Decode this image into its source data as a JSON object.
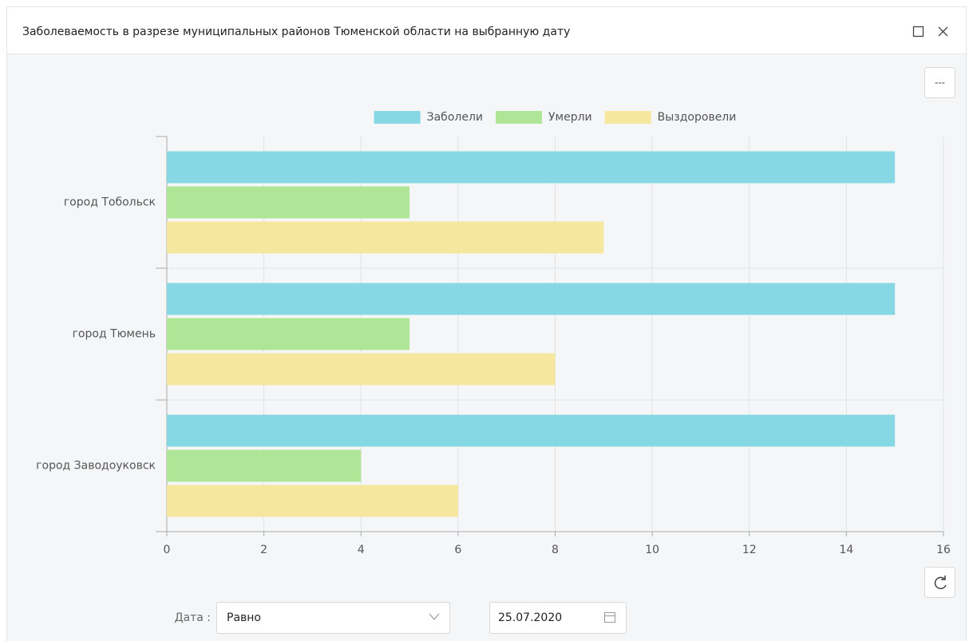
{
  "window": {
    "title": "Заболеваемость в разрезе муниципальных районов Тюменской области на выбранную дату",
    "menu_button": "---"
  },
  "chart_data": {
    "type": "bar",
    "orientation": "horizontal",
    "categories": [
      "город Тобольск",
      "город Тюмень",
      "город Заводоуковск"
    ],
    "series": [
      {
        "name": "Заболели",
        "color": "#86d8e4",
        "values": [
          15,
          15,
          15
        ]
      },
      {
        "name": "Умерли",
        "color": "#aee596",
        "values": [
          5,
          5,
          4
        ]
      },
      {
        "name": "Выздоровели",
        "color": "#f5e79e",
        "values": [
          9,
          8,
          6
        ]
      }
    ],
    "xlim": [
      0,
      16
    ],
    "xticks": [
      0,
      2,
      4,
      6,
      8,
      10,
      12,
      14,
      16
    ],
    "grid": true,
    "legend": "top"
  },
  "filter": {
    "label": "Дата :",
    "operator": "Равно",
    "date": "25.07.2020"
  }
}
